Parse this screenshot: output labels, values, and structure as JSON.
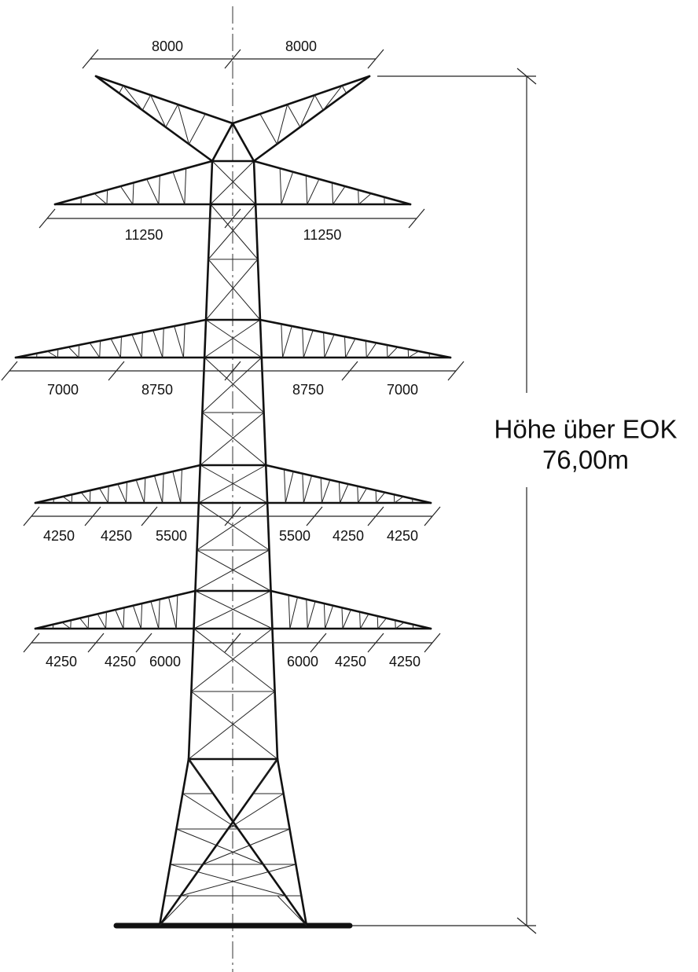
{
  "top_arm": [
    8000,
    8000
  ],
  "arm_1": [
    11250,
    11250
  ],
  "arm_2": [
    7000,
    8750,
    8750,
    7000
  ],
  "arm_3": [
    4250,
    4250,
    5500,
    5500,
    4250,
    4250
  ],
  "arm_4": [
    4250,
    4250,
    6000,
    6000,
    4250,
    4250
  ],
  "height": {
    "label": "Höhe über EOK",
    "value": "76,00m"
  }
}
